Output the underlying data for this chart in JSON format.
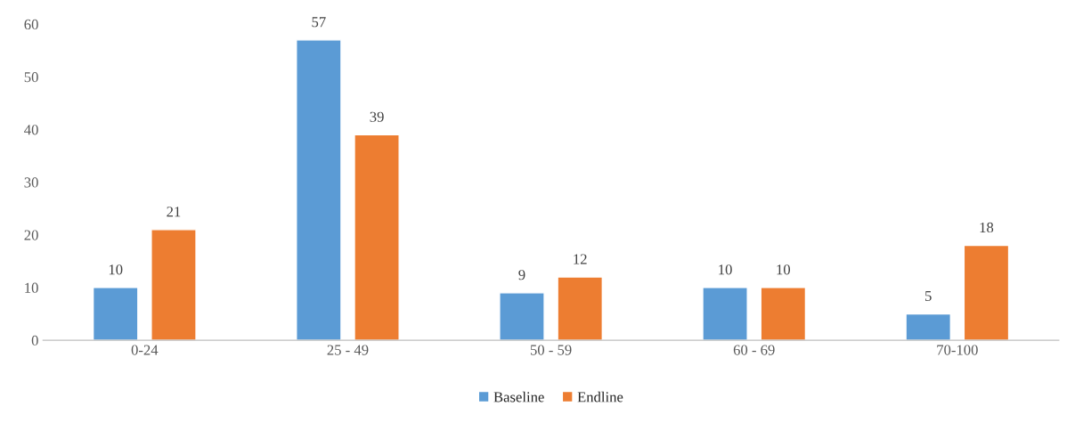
{
  "chart_data": {
    "type": "bar",
    "categories": [
      "0-24",
      "25 - 49",
      "50 - 59",
      "60 - 69",
      "70-100"
    ],
    "series": [
      {
        "name": "Baseline",
        "color": "#5b9bd5",
        "values": [
          10,
          57,
          9,
          10,
          5
        ]
      },
      {
        "name": "Endline",
        "color": "#ed7d31",
        "values": [
          21,
          39,
          12,
          10,
          18
        ]
      }
    ],
    "ylim": [
      0,
      60
    ],
    "yticks": [
      0,
      10,
      20,
      30,
      40,
      50,
      60
    ],
    "grid": false,
    "legend": "bottom",
    "data_labels": true
  }
}
